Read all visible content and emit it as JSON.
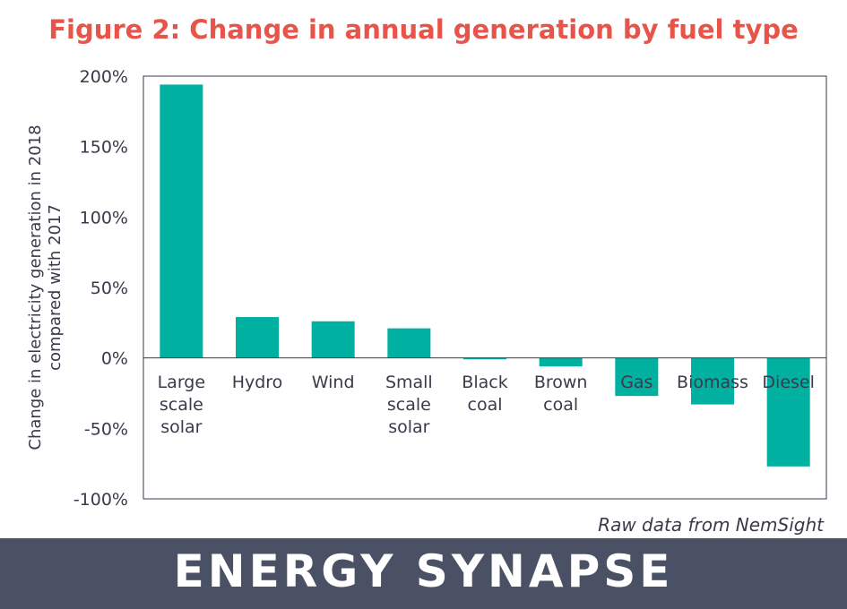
{
  "title": "Figure 2: Change in annual generation by fuel type",
  "source_note": "Raw data from NemSight",
  "brand": {
    "logo_text": "ENERGY SYNAPSE"
  },
  "colors": {
    "title": "#e8544a",
    "bar": "#00b0a0",
    "footer": "#4a5164"
  },
  "chart_data": {
    "type": "bar",
    "categories": [
      "Large scale solar",
      "Hydro",
      "Wind",
      "Small scale solar",
      "Black coal",
      "Brown coal",
      "Gas",
      "Biomass",
      "Diesel"
    ],
    "category_lines": [
      [
        "Large",
        "scale",
        "solar"
      ],
      [
        "Hydro"
      ],
      [
        "Wind"
      ],
      [
        "Small",
        "scale",
        "solar"
      ],
      [
        "Black",
        "coal"
      ],
      [
        "Brown",
        "coal"
      ],
      [
        "Gas"
      ],
      [
        "Biomass"
      ],
      [
        "Diesel"
      ]
    ],
    "values": [
      194,
      29,
      26,
      21,
      -1,
      -6,
      -27,
      -33,
      -77
    ],
    "ylabel_lines": [
      "Change in electricity generation in 2018",
      "compared with 2017"
    ],
    "yticks": [
      "200%",
      "150%",
      "100%",
      "50%",
      "0%",
      "-50%",
      "-100%"
    ],
    "ylim": [
      -100,
      200
    ],
    "grid": false,
    "legend": "none"
  }
}
